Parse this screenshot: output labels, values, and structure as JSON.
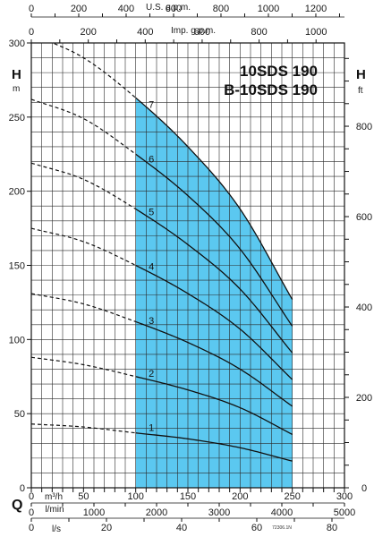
{
  "chart_data": {
    "type": "line",
    "title": [
      "10SDS 190",
      "B-10SDS 190"
    ],
    "footnote": "72306.1N",
    "left_axis": {
      "label": "H",
      "unit": "m",
      "ylim": [
        0,
        300
      ],
      "ticks": [
        0,
        50,
        100,
        150,
        200,
        250,
        300
      ],
      "tick_labels": [
        "0",
        "50",
        "100",
        "150",
        "200",
        "250",
        "300"
      ]
    },
    "right_axis": {
      "label": "H",
      "unit": "ft",
      "ticks": [
        0,
        200,
        400,
        600,
        800
      ],
      "tick_labels": [
        "0",
        "200",
        "400",
        "600",
        "800"
      ]
    },
    "bottom_axis": {
      "label": "Q",
      "unit": "m³/h",
      "xlim": [
        0,
        300
      ],
      "ticks": [
        50,
        100,
        150,
        200,
        250,
        300
      ],
      "tick_labels": [
        "50",
        "100",
        "150",
        "200",
        "250",
        "300"
      ],
      "zero_label": "0"
    },
    "lmin_axis": {
      "unit": "l/min",
      "ticks": [
        1000,
        2000,
        3000,
        4000,
        5000
      ],
      "tick_labels": [
        "1000",
        "2000",
        "3000",
        "4000",
        "5000"
      ],
      "zero_label": "0"
    },
    "ls_axis": {
      "unit": "l/s",
      "ticks": [
        20,
        40,
        60,
        80
      ],
      "tick_labels": [
        "20",
        "40",
        "60",
        "80"
      ],
      "zero_label": "0"
    },
    "usgpm_axis": {
      "unit": "U.S. g.p.m.",
      "ticks": [
        0,
        200,
        400,
        600,
        800,
        1000,
        1200
      ],
      "tick_labels": [
        "0",
        "200",
        "400",
        "600",
        "800",
        "1000",
        "1200"
      ]
    },
    "impgpm_axis": {
      "unit": "Imp. g.p.m.",
      "ticks": [
        0,
        200,
        400,
        600,
        800,
        1000
      ],
      "tick_labels": [
        "0",
        "200",
        "400",
        "600",
        "800",
        "1000"
      ]
    },
    "operating_range": {
      "q_min": 100,
      "q_max": 250,
      "color": "#5bc8f0"
    },
    "series": [
      {
        "name": "1",
        "label_at": 115,
        "points": [
          [
            0,
            43
          ],
          [
            50,
            41
          ],
          [
            100,
            37
          ],
          [
            150,
            33
          ],
          [
            200,
            27
          ],
          [
            250,
            18
          ]
        ]
      },
      {
        "name": "2",
        "label_at": 115,
        "points": [
          [
            0,
            88
          ],
          [
            50,
            83
          ],
          [
            100,
            75
          ],
          [
            150,
            66
          ],
          [
            200,
            54
          ],
          [
            250,
            36
          ]
        ]
      },
      {
        "name": "3",
        "label_at": 115,
        "points": [
          [
            0,
            131
          ],
          [
            50,
            124
          ],
          [
            100,
            112
          ],
          [
            150,
            98
          ],
          [
            200,
            80
          ],
          [
            250,
            55
          ]
        ]
      },
      {
        "name": "4",
        "label_at": 115,
        "points": [
          [
            0,
            175
          ],
          [
            50,
            166
          ],
          [
            100,
            150
          ],
          [
            150,
            131
          ],
          [
            200,
            107
          ],
          [
            250,
            73
          ]
        ]
      },
      {
        "name": "5",
        "label_at": 115,
        "points": [
          [
            0,
            219
          ],
          [
            50,
            208
          ],
          [
            100,
            188
          ],
          [
            150,
            164
          ],
          [
            200,
            134
          ],
          [
            250,
            91
          ]
        ]
      },
      {
        "name": "6",
        "label_at": 115,
        "points": [
          [
            0,
            262
          ],
          [
            50,
            249
          ],
          [
            100,
            225
          ],
          [
            150,
            197
          ],
          [
            200,
            161
          ],
          [
            250,
            109
          ]
        ]
      },
      {
        "name": "7",
        "label_at": 115,
        "points": [
          [
            0,
            306
          ],
          [
            50,
            290
          ],
          [
            100,
            263
          ],
          [
            150,
            230
          ],
          [
            200,
            188
          ],
          [
            250,
            127
          ]
        ]
      }
    ]
  }
}
